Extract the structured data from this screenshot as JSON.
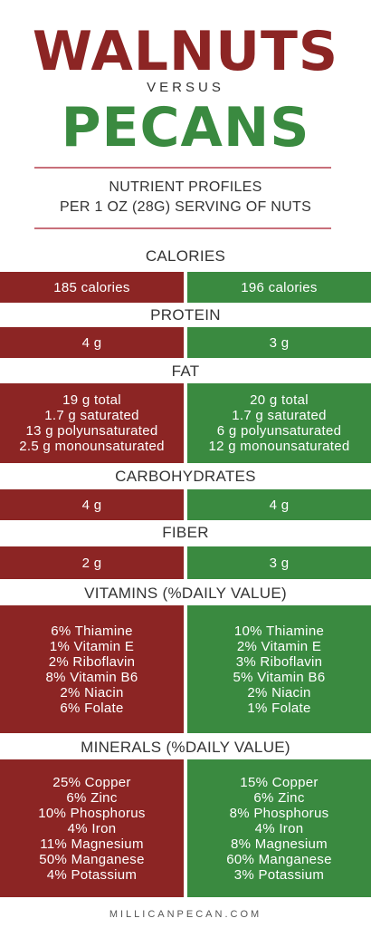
{
  "header": {
    "title_top": "WALNUTS",
    "versus": "VERSUS",
    "title_bottom": "PECANS",
    "subtitle_line1": "NUTRIENT PROFILES",
    "subtitle_line2": "PER 1 OZ (28G) SERVING OF NUTS"
  },
  "colors": {
    "walnut": "#8c2524",
    "pecan": "#3a8a40",
    "rule": "#c8707a"
  },
  "sections": {
    "calories": {
      "title": "CALORIES",
      "walnuts": [
        "185 calories"
      ],
      "pecans": [
        "196 calories"
      ]
    },
    "protein": {
      "title": "PROTEIN",
      "walnuts": [
        "4 g"
      ],
      "pecans": [
        "3 g"
      ]
    },
    "fat": {
      "title": "FAT",
      "walnuts": [
        "19 g total",
        "1.7 g saturated",
        "13 g polyunsaturated",
        "2.5 g monounsaturated"
      ],
      "pecans": [
        "20 g total",
        "1.7 g saturated",
        "6 g polyunsaturated",
        "12 g monounsaturated"
      ]
    },
    "carbohydrates": {
      "title": "CARBOHYDRATES",
      "walnuts": [
        "4 g"
      ],
      "pecans": [
        "4 g"
      ]
    },
    "fiber": {
      "title": "FIBER",
      "walnuts": [
        "2 g"
      ],
      "pecans": [
        "3 g"
      ]
    },
    "vitamins": {
      "title": "VITAMINS (%DAILY VALUE)",
      "walnuts": [
        "6% Thiamine",
        "1% Vitamin E",
        "2% Riboflavin",
        "8% Vitamin B6",
        "2% Niacin",
        "6% Folate"
      ],
      "pecans": [
        "10% Thiamine",
        "2% Vitamin E",
        "3% Riboflavin",
        "5% Vitamin B6",
        "2% Niacin",
        "1% Folate"
      ]
    },
    "minerals": {
      "title": "MINERALS (%DAILY VALUE)",
      "walnuts": [
        "25% Copper",
        "6% Zinc",
        "10% Phosphorus",
        "4% Iron",
        "11% Magnesium",
        "50% Manganese",
        "4% Potassium"
      ],
      "pecans": [
        "15% Copper",
        "6% Zinc",
        "8% Phosphorus",
        "4% Iron",
        "8% Magnesium",
        "60% Manganese",
        "3% Potassium"
      ]
    }
  },
  "footer": {
    "site": "MILLICANPECAN.COM"
  }
}
